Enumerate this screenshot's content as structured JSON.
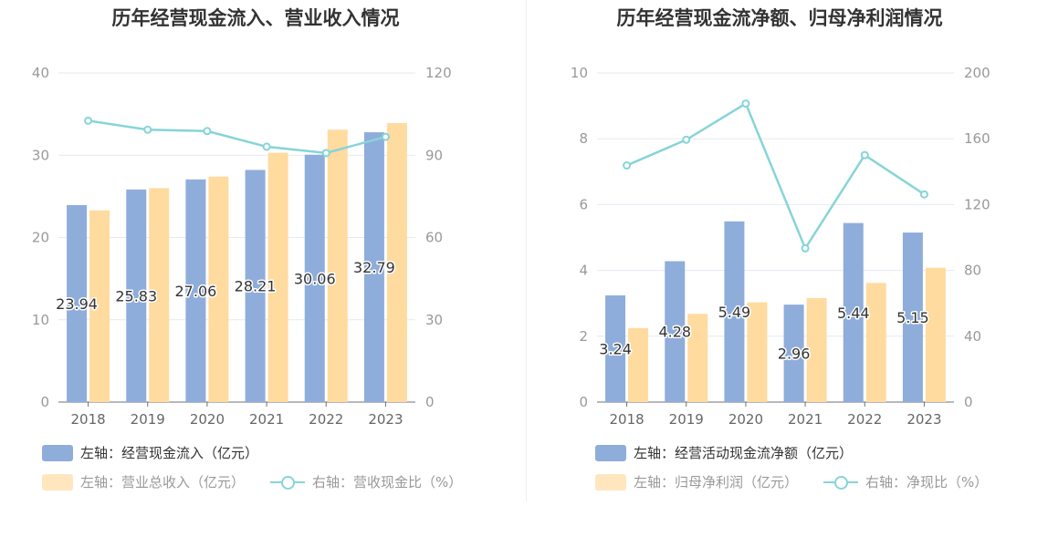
{
  "colors": {
    "bar_primary": "#8fadda",
    "bar_secondary": "#ffdba0",
    "line": "#87d4d8",
    "grid": "#e6e9f2",
    "axis": "#999999"
  },
  "chart_data": [
    {
      "type": "bar",
      "title": "历年经营现金流入、营业收入情况",
      "categories": [
        "2018",
        "2019",
        "2020",
        "2021",
        "2022",
        "2023"
      ],
      "y_left": {
        "min": 0,
        "max": 40,
        "ticks": [
          "0",
          "10",
          "20",
          "30",
          "40"
        ]
      },
      "y_right": {
        "min": 0,
        "max": 120,
        "ticks": [
          "0",
          "30",
          "60",
          "90",
          "120"
        ]
      },
      "series": [
        {
          "name": "左轴：经营现金流入（亿元）",
          "axis": "left",
          "type": "bar",
          "values": [
            23.94,
            25.83,
            27.06,
            28.21,
            30.06,
            32.79
          ],
          "labels": [
            "23.94",
            "25.83",
            "27.06",
            "28.21",
            "30.06",
            "32.79"
          ]
        },
        {
          "name": "左轴：营业总收入（亿元）",
          "axis": "left",
          "type": "bar",
          "values": [
            23.3,
            26.0,
            27.4,
            30.3,
            33.1,
            33.9
          ]
        },
        {
          "name": "右轴：营收现金比（%）",
          "axis": "right",
          "type": "line",
          "values": [
            102.6,
            99.3,
            98.8,
            93.1,
            90.8,
            96.7
          ]
        }
      ]
    },
    {
      "type": "bar",
      "title": "历年经营现金流净额、归母净利润情况",
      "categories": [
        "2018",
        "2019",
        "2020",
        "2021",
        "2022",
        "2023"
      ],
      "y_left": {
        "min": 0,
        "max": 10,
        "ticks": [
          "0",
          "2",
          "4",
          "6",
          "8",
          "10"
        ]
      },
      "y_right": {
        "min": 0,
        "max": 200,
        "ticks": [
          "0",
          "40",
          "80",
          "120",
          "160",
          "200"
        ]
      },
      "series": [
        {
          "name": "左轴：经营活动现金流净额（亿元）",
          "axis": "left",
          "type": "bar",
          "values": [
            3.24,
            4.28,
            5.49,
            2.96,
            5.44,
            5.15
          ],
          "labels": [
            "3.24",
            "4.28",
            "5.49",
            "2.96",
            "5.44",
            "5.15"
          ]
        },
        {
          "name": "左轴：归母净利润（亿元）",
          "axis": "left",
          "type": "bar",
          "values": [
            2.25,
            2.68,
            3.03,
            3.16,
            3.62,
            4.08
          ]
        },
        {
          "name": "右轴：净现比（%）",
          "axis": "right",
          "type": "line",
          "values": [
            143.8,
            159.4,
            181.4,
            93.4,
            150.1,
            126.2
          ]
        }
      ]
    }
  ]
}
